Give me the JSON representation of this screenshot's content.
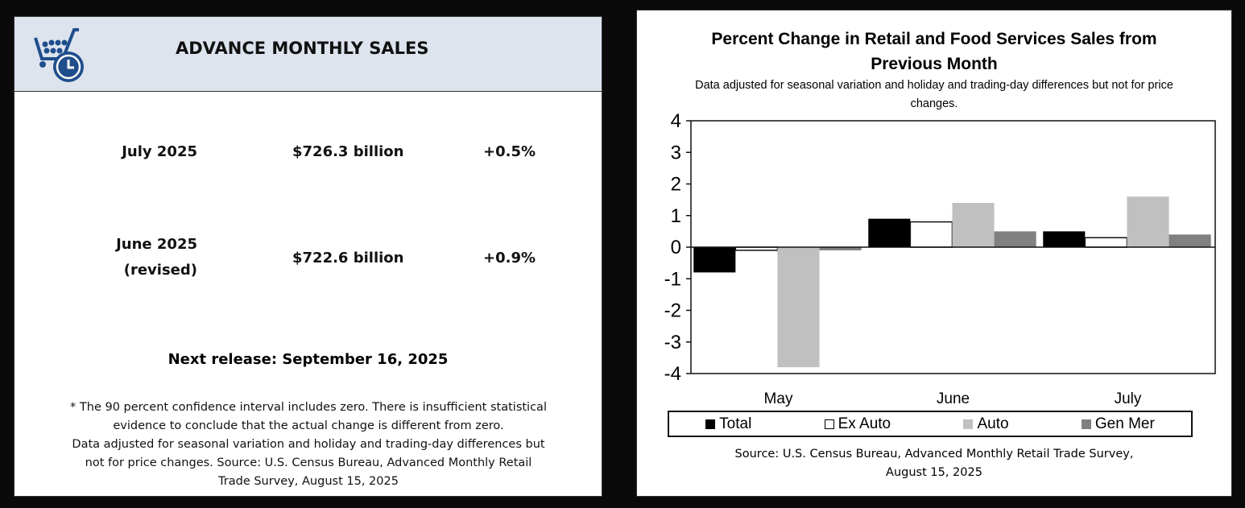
{
  "left": {
    "header_title": "ADVANCE MONTHLY SALES",
    "icon": "shopping-cart-clock-icon",
    "rows": [
      {
        "period": "July 2025",
        "sub": "",
        "amount": "$726.3 billion",
        "change": "+0.5%"
      },
      {
        "period": "June 2025",
        "sub": "(revised)",
        "amount": "$722.6 billion",
        "change": "+0.9%"
      }
    ],
    "next_release": "Next release: September 16, 2025",
    "note_lines": [
      "* The 90 percent confidence interval includes zero. There is insufficient statistical",
      "evidence to conclude that the actual change is different from zero.",
      "Data adjusted for seasonal variation and holiday and trading-day differences but",
      "not for price changes. Source: U.S. Census Bureau, Advanced Monthly Retail",
      "Trade Survey, August 15, 2025"
    ]
  },
  "chart_data": {
    "type": "bar",
    "title": "Percent Change in Retail and Food Services Sales from Previous Month",
    "subtitle": "Data adjusted for seasonal variation and holiday and trading-day differences but not for price changes.",
    "categories": [
      "May",
      "June",
      "July"
    ],
    "series": [
      {
        "name": "Total",
        "color": "#000000",
        "values": [
          -0.8,
          0.9,
          0.5
        ]
      },
      {
        "name": "Ex Auto",
        "color": "#ffffff",
        "values": [
          -0.1,
          0.8,
          0.3
        ]
      },
      {
        "name": "Auto",
        "color": "#c0c0c0",
        "values": [
          -3.8,
          1.4,
          1.6
        ]
      },
      {
        "name": "Gen Mer",
        "color": "#808080",
        "values": [
          -0.1,
          0.5,
          0.4
        ]
      }
    ],
    "ylim": [
      -4,
      4
    ],
    "yticks": [
      "4",
      "3",
      "2",
      "1",
      "0",
      "-1",
      "-2",
      "-3",
      "-4"
    ],
    "legend": "bottom",
    "grid": false,
    "source_lines": [
      "Source: U.S. Census Bureau, Advanced Monthly Retail Trade Survey,",
      "August 15, 2025"
    ]
  }
}
